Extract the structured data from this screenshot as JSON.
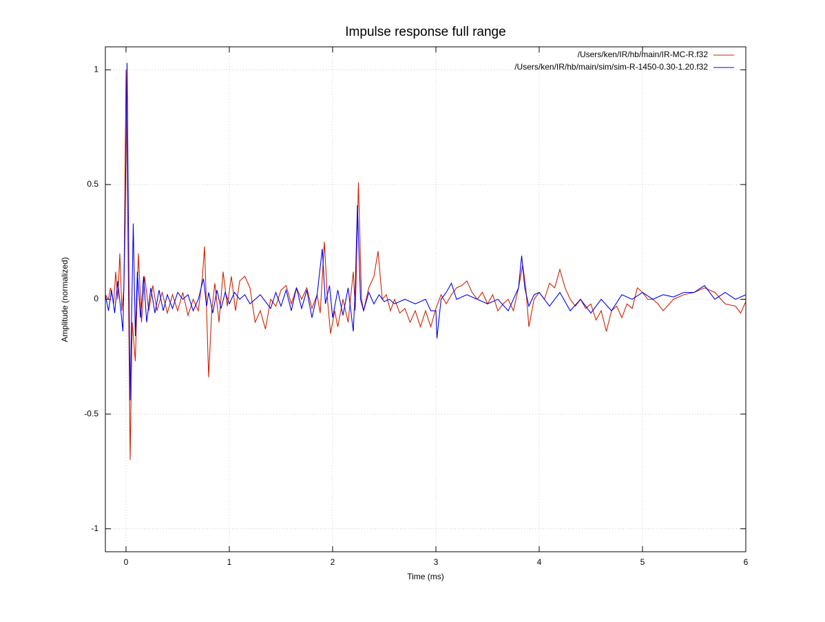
{
  "chart_data": {
    "type": "line",
    "title": "Impulse response full range",
    "xlabel": "Time (ms)",
    "ylabel": "Amplitude (normalized)",
    "xlim": [
      -0.2,
      6
    ],
    "ylim": [
      -1.1,
      1.1
    ],
    "xticks": [
      0,
      1,
      2,
      3,
      4,
      5,
      6
    ],
    "yticks": [
      -1,
      -0.5,
      0,
      0.5,
      1
    ],
    "grid": true,
    "legend": "top right",
    "series": [
      {
        "name": "/Users/ken/IR/hb/main/IR-MC-R.f32",
        "color": "#cc2200",
        "x": [
          -0.2,
          -0.17,
          -0.15,
          -0.12,
          -0.1,
          -0.08,
          -0.06,
          -0.04,
          -0.02,
          0,
          0.02,
          0.04,
          0.06,
          0.09,
          0.12,
          0.15,
          0.18,
          0.22,
          0.26,
          0.3,
          0.35,
          0.4,
          0.45,
          0.5,
          0.55,
          0.6,
          0.65,
          0.7,
          0.74,
          0.76,
          0.78,
          0.8,
          0.83,
          0.86,
          0.9,
          0.94,
          0.98,
          1.02,
          1.06,
          1.1,
          1.15,
          1.2,
          1.25,
          1.3,
          1.35,
          1.4,
          1.45,
          1.5,
          1.55,
          1.6,
          1.65,
          1.7,
          1.75,
          1.8,
          1.85,
          1.88,
          1.92,
          1.95,
          1.98,
          2.02,
          2.05,
          2.1,
          2.15,
          2.2,
          2.22,
          2.25,
          2.28,
          2.3,
          2.35,
          2.4,
          2.44,
          2.48,
          2.52,
          2.56,
          2.6,
          2.65,
          2.7,
          2.75,
          2.8,
          2.85,
          2.9,
          2.95,
          3.0,
          3.05,
          3.1,
          3.15,
          3.2,
          3.25,
          3.3,
          3.35,
          3.4,
          3.45,
          3.5,
          3.55,
          3.6,
          3.65,
          3.7,
          3.75,
          3.8,
          3.84,
          3.87,
          3.9,
          3.95,
          4.0,
          4.05,
          4.1,
          4.15,
          4.2,
          4.25,
          4.3,
          4.35,
          4.4,
          4.45,
          4.5,
          4.55,
          4.6,
          4.65,
          4.7,
          4.75,
          4.8,
          4.85,
          4.9,
          4.95,
          5.0,
          5.05,
          5.1,
          5.15,
          5.2,
          5.3,
          5.4,
          5.5,
          5.6,
          5.7,
          5.8,
          5.9,
          5.95,
          6.0
        ],
        "values": [
          0.02,
          0.0,
          0.05,
          -0.02,
          0.12,
          0.0,
          0.2,
          -0.05,
          0.05,
          1.0,
          0.2,
          -0.7,
          -0.1,
          -0.27,
          0.2,
          -0.1,
          0.1,
          -0.05,
          0.06,
          -0.05,
          0.03,
          -0.06,
          0.02,
          -0.05,
          0.03,
          -0.07,
          0.0,
          -0.05,
          0.1,
          0.23,
          -0.05,
          -0.34,
          -0.05,
          0.07,
          -0.1,
          0.12,
          -0.03,
          0.1,
          -0.05,
          0.08,
          0.1,
          0.05,
          -0.1,
          -0.05,
          -0.13,
          0.0,
          -0.03,
          0.04,
          0.06,
          -0.02,
          0.05,
          0.0,
          0.05,
          -0.04,
          0.02,
          -0.06,
          0.25,
          0.0,
          -0.15,
          -0.05,
          -0.12,
          0.0,
          -0.1,
          0.12,
          -0.05,
          0.51,
          0.0,
          -0.05,
          0.05,
          0.1,
          0.21,
          0.0,
          0.02,
          -0.05,
          0.0,
          -0.06,
          -0.04,
          -0.1,
          -0.05,
          -0.12,
          -0.05,
          -0.12,
          -0.04,
          0.02,
          -0.02,
          0.02,
          0.05,
          0.06,
          0.08,
          0.03,
          0.0,
          0.03,
          -0.02,
          0.02,
          -0.05,
          -0.02,
          0.0,
          -0.05,
          0.05,
          0.15,
          0.05,
          -0.12,
          0.0,
          0.03,
          0.0,
          0.07,
          0.05,
          0.13,
          0.05,
          0.0,
          -0.03,
          0.0,
          -0.04,
          -0.02,
          -0.09,
          -0.05,
          -0.14,
          -0.05,
          -0.03,
          -0.08,
          -0.02,
          -0.04,
          0.05,
          0.03,
          0.0,
          0.0,
          -0.02,
          -0.05,
          0.0,
          0.02,
          0.03,
          0.05,
          0.03,
          -0.02,
          -0.03,
          -0.06,
          -0.01
        ]
      },
      {
        "name": "/Users/ken/IR/hb/main/sim/sim-R-1450-0.30-1.20.f32",
        "color": "#0000ee",
        "x": [
          -0.2,
          -0.17,
          -0.14,
          -0.11,
          -0.08,
          -0.05,
          -0.03,
          -0.01,
          0.01,
          0.03,
          0.04,
          0.07,
          0.09,
          0.11,
          0.14,
          0.17,
          0.2,
          0.24,
          0.28,
          0.32,
          0.36,
          0.4,
          0.45,
          0.5,
          0.55,
          0.6,
          0.65,
          0.7,
          0.75,
          0.78,
          0.8,
          0.84,
          0.88,
          0.92,
          0.96,
          1.0,
          1.05,
          1.1,
          1.15,
          1.2,
          1.3,
          1.4,
          1.45,
          1.5,
          1.55,
          1.6,
          1.65,
          1.7,
          1.75,
          1.8,
          1.85,
          1.9,
          1.93,
          1.97,
          2.0,
          2.05,
          2.1,
          2.15,
          2.2,
          2.22,
          2.24,
          2.27,
          2.3,
          2.35,
          2.4,
          2.45,
          2.5,
          2.55,
          2.6,
          2.7,
          2.8,
          2.9,
          2.95,
          3.0,
          3.01,
          3.05,
          3.1,
          3.15,
          3.2,
          3.3,
          3.4,
          3.5,
          3.6,
          3.7,
          3.8,
          3.83,
          3.86,
          3.9,
          3.95,
          4.0,
          4.1,
          4.2,
          4.3,
          4.4,
          4.5,
          4.6,
          4.7,
          4.8,
          4.9,
          5.0,
          5.1,
          5.2,
          5.3,
          5.4,
          5.5,
          5.6,
          5.7,
          5.8,
          5.9,
          6.0
        ],
        "values": [
          0.02,
          -0.05,
          0.04,
          -0.06,
          0.08,
          -0.05,
          -0.14,
          0.3,
          1.03,
          0.0,
          -0.44,
          0.33,
          -0.16,
          0.12,
          -0.08,
          0.1,
          -0.1,
          0.05,
          -0.06,
          0.04,
          -0.05,
          0.02,
          -0.04,
          0.03,
          0.0,
          0.02,
          -0.05,
          0.0,
          0.09,
          -0.03,
          0.03,
          -0.06,
          0.04,
          -0.04,
          0.03,
          -0.02,
          0.03,
          0.0,
          0.02,
          -0.02,
          0.02,
          -0.04,
          0.03,
          -0.03,
          0.04,
          -0.05,
          0.05,
          -0.04,
          0.04,
          -0.08,
          0.02,
          0.22,
          -0.02,
          0.06,
          -0.08,
          0.04,
          -0.07,
          0.05,
          -0.14,
          0.06,
          0.41,
          0.0,
          -0.05,
          0.03,
          -0.02,
          0.02,
          -0.01,
          0.0,
          -0.02,
          0.0,
          -0.02,
          0.0,
          -0.05,
          -0.05,
          -0.17,
          0.0,
          0.03,
          0.07,
          0.0,
          0.02,
          0.0,
          -0.02,
          0.0,
          -0.05,
          0.05,
          0.19,
          0.05,
          -0.03,
          0.02,
          0.03,
          -0.03,
          0.03,
          -0.05,
          0.0,
          -0.06,
          0.0,
          -0.05,
          0.02,
          0.0,
          0.03,
          0.0,
          0.02,
          0.01,
          0.03,
          0.03,
          0.06,
          0.0,
          0.03,
          0.0,
          0.02
        ]
      }
    ]
  }
}
